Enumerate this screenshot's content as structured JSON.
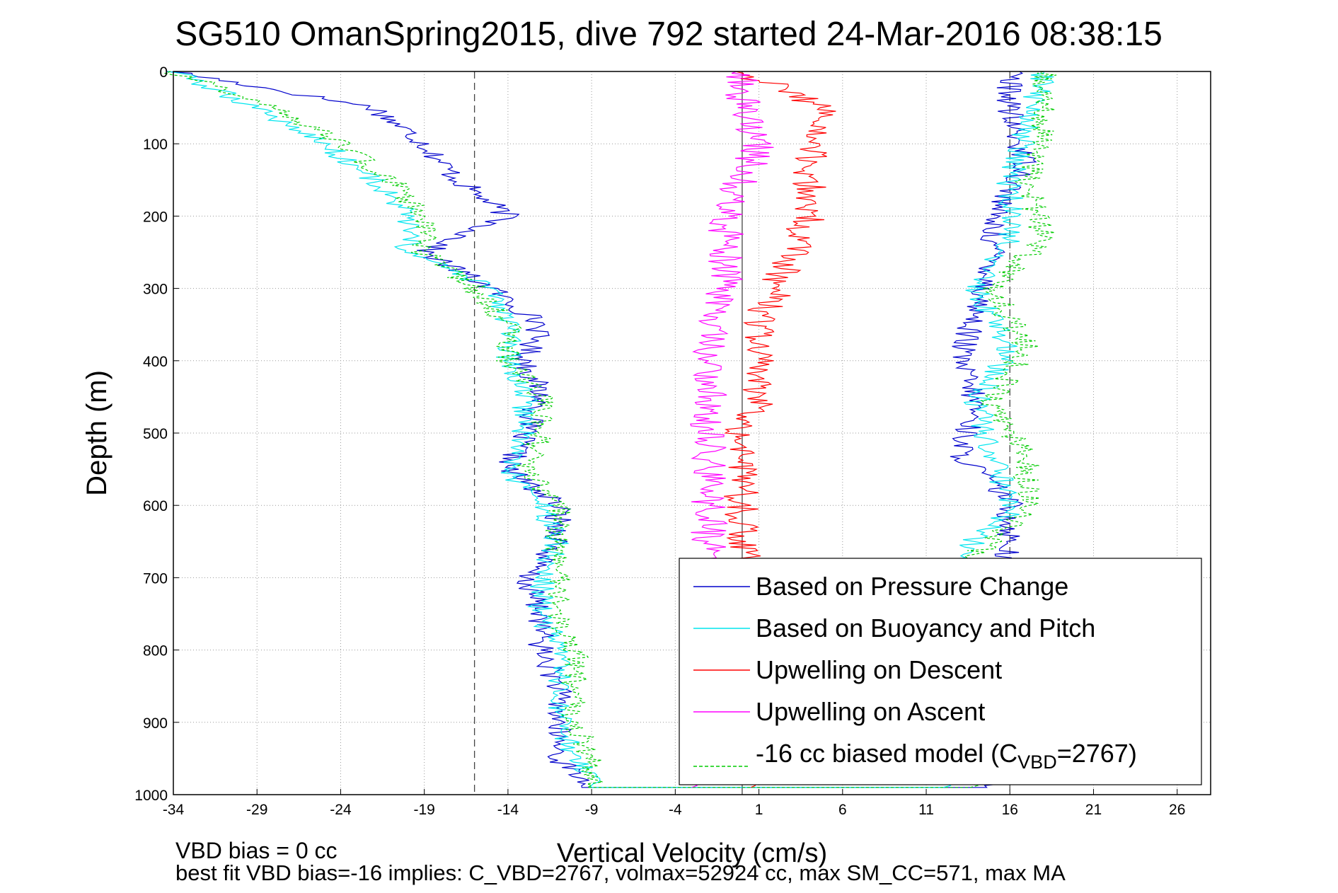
{
  "chart_data": {
    "type": "line",
    "title": "SG510 OmanSpring2015, dive 792 started 24-Mar-2016 08:38:15",
    "xlabel": "Vertical Velocity (cm/s)",
    "ylabel": "Depth (m)",
    "xlim": [
      -34,
      28
    ],
    "ylim": [
      0,
      1000
    ],
    "x_ticks": [
      "-34",
      "-29",
      "-24",
      "-19",
      "-14",
      "-9",
      "-4",
      "1",
      "6",
      "11",
      "16",
      "21",
      "26"
    ],
    "y_ticks": [
      "0",
      "100",
      "200",
      "300",
      "400",
      "500",
      "600",
      "700",
      "800",
      "900",
      "1000"
    ],
    "grid": true,
    "reference_lines": [
      -16,
      0,
      16
    ],
    "depth": [
      0,
      50,
      100,
      150,
      200,
      250,
      300,
      350,
      400,
      450,
      500,
      550,
      600,
      650,
      700,
      750,
      800,
      850,
      900,
      950,
      990
    ],
    "series": [
      {
        "name": "Based on Pressure Change",
        "color": "#0000cc",
        "style": "solid",
        "values": [
          -34,
          -22,
          -19,
          -17,
          -14,
          -19,
          -15,
          -12,
          -13,
          -12,
          -13,
          -14,
          -11,
          -11,
          -13,
          -12,
          -12,
          -11,
          -11,
          -11,
          -9,
          15,
          12,
          11,
          11,
          14,
          16,
          16,
          13,
          14,
          13,
          14,
          15,
          15,
          17,
          16,
          16
        ]
      },
      {
        "name": "Based on Buoyancy and Pitch",
        "color": "#00e5ee",
        "style": "solid",
        "values": [
          -34,
          -29,
          -25,
          -22,
          -20,
          -20,
          -15,
          -14,
          -14,
          -13,
          -13,
          -14,
          -12,
          -11,
          -12,
          -12,
          -11,
          -11,
          -11,
          -10,
          -9,
          12,
          9,
          10,
          10,
          12,
          16,
          15,
          14,
          16,
          14,
          16,
          16,
          17,
          18
        ]
      },
      {
        "name": "Upwelling on Descent",
        "color": "#ff0000",
        "style": "solid",
        "values": [
          0,
          5,
          4,
          4,
          4,
          3,
          2,
          1,
          1,
          1,
          0,
          0,
          0,
          0,
          0,
          0,
          0,
          0,
          0,
          0,
          0
        ]
      },
      {
        "name": "Upwelling on Ascent",
        "color": "#ff00ff",
        "style": "solid",
        "values": [
          0,
          0,
          1,
          0,
          -1,
          -1,
          -1,
          -2,
          -2,
          -2,
          -2,
          -2,
          -2,
          -2,
          -2,
          -2,
          -2,
          -2,
          -2,
          -2,
          -2
        ]
      },
      {
        "name": "-16 cc biased model (C",
        "color": "#00cc00",
        "style": "dashed",
        "values": [
          -34,
          -28,
          -24,
          -21,
          -19,
          -19,
          -16,
          -14,
          -14,
          -12,
          -12,
          -13,
          -11,
          -11,
          -11,
          -11,
          -10,
          -10,
          -10,
          -9,
          -9,
          14,
          11,
          11,
          11,
          13,
          17,
          17,
          15,
          17,
          15,
          18,
          17,
          18,
          18
        ]
      }
    ],
    "legend_subscript": "VBD",
    "legend_suffix": "=2767)",
    "legend_position": "bottom-right",
    "footer_line1": "VBD bias = 0 cc",
    "footer_line2": "best fit VBD bias=-16 implies: C_VBD=2767, volmax=52924 cc, max SM_CC=571, max MA"
  }
}
